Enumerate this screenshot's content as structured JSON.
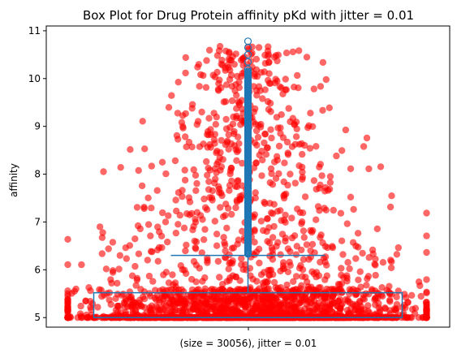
{
  "chart_data": {
    "type": "box",
    "title": "Box Plot for Drug Protein affinity pKd with jitter = 0.01",
    "ylabel": "affinity",
    "categories": [
      "(size = 30056), jitter = 0.01"
    ],
    "ylim": [
      4.8,
      11.1
    ],
    "yticks": [
      5,
      6,
      7,
      8,
      9,
      10,
      11
    ],
    "grid": false,
    "box": {
      "min": 5.0,
      "q1": 5.0,
      "median": 5.0,
      "q3": 5.52,
      "whisker_high": 6.3,
      "max": 10.8
    },
    "outlier_markers": [
      6.35,
      6.5,
      6.7,
      7.0,
      7.3,
      7.6,
      8.0,
      8.4,
      8.8,
      9.2,
      9.6,
      9.85,
      10.05,
      10.2,
      10.35,
      10.5,
      10.65,
      10.78
    ],
    "jitter_points": {
      "size": 30056,
      "jitter": 0.01,
      "color": "#ff0000",
      "alpha": 0.6
    },
    "colors": {
      "box": "#1f77b4",
      "points": "#ff0000"
    }
  }
}
